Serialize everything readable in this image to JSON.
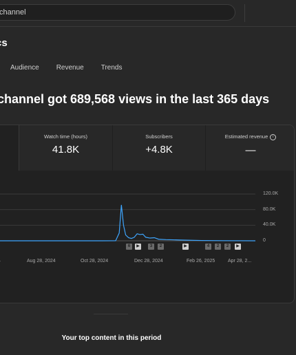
{
  "search": {
    "value": "channel"
  },
  "page": {
    "title": "cs"
  },
  "tabs": [
    "Audience",
    "Revenue",
    "Trends"
  ],
  "headline": "channel got 689,568 views in the last 365 days",
  "metrics": [
    {
      "label": "Watch time (hours)",
      "value": "41.8K"
    },
    {
      "label": "Subscribers",
      "value": "+4.8K"
    },
    {
      "label": "Estimated revenue",
      "value": "—"
    }
  ],
  "chart_data": {
    "type": "line",
    "x_tick_labels": [
      "4",
      "Aug 28, 2024",
      "Oct 28, 2024",
      "Dec 28, 2024",
      "Feb 26, 2025",
      "Apr 28, 2..."
    ],
    "y_tick_labels": [
      "120.0K",
      "80.0K",
      "40.0K",
      "0"
    ],
    "ylim": [
      0,
      120000
    ],
    "grid": true,
    "series": [
      {
        "color": "#3ea6ff",
        "points": [
          [
            0,
            0
          ],
          [
            40,
            0
          ],
          [
            80,
            0
          ],
          [
            120,
            0
          ],
          [
            150,
            0
          ],
          [
            170,
            200
          ],
          [
            175,
            20000
          ],
          [
            178,
            92000
          ],
          [
            181,
            40000
          ],
          [
            184,
            15000
          ],
          [
            188,
            8000
          ],
          [
            192,
            6000
          ],
          [
            196,
            9000
          ],
          [
            200,
            18000
          ],
          [
            204,
            16000
          ],
          [
            208,
            17000
          ],
          [
            212,
            9000
          ],
          [
            218,
            7000
          ],
          [
            224,
            8000
          ],
          [
            230,
            4000
          ],
          [
            240,
            3000
          ],
          [
            250,
            2500
          ],
          [
            260,
            2000
          ],
          [
            270,
            1500
          ],
          [
            290,
            800
          ],
          [
            320,
            300
          ],
          [
            365,
            0
          ]
        ]
      }
    ]
  },
  "markers": [
    {
      "label": "6",
      "style": "dark"
    },
    {
      "label": "▶",
      "style": "light"
    },
    {
      "label": "3",
      "style": "dark"
    },
    {
      "label": "2",
      "style": "dark"
    },
    {
      "label": "▶",
      "style": "light"
    },
    {
      "label": "4",
      "style": "dark"
    },
    {
      "label": "2",
      "style": "dark"
    },
    {
      "label": "2",
      "style": "dark"
    },
    {
      "label": "▶",
      "style": "light"
    }
  ],
  "content_section": {
    "title": "Your top content in this period"
  }
}
